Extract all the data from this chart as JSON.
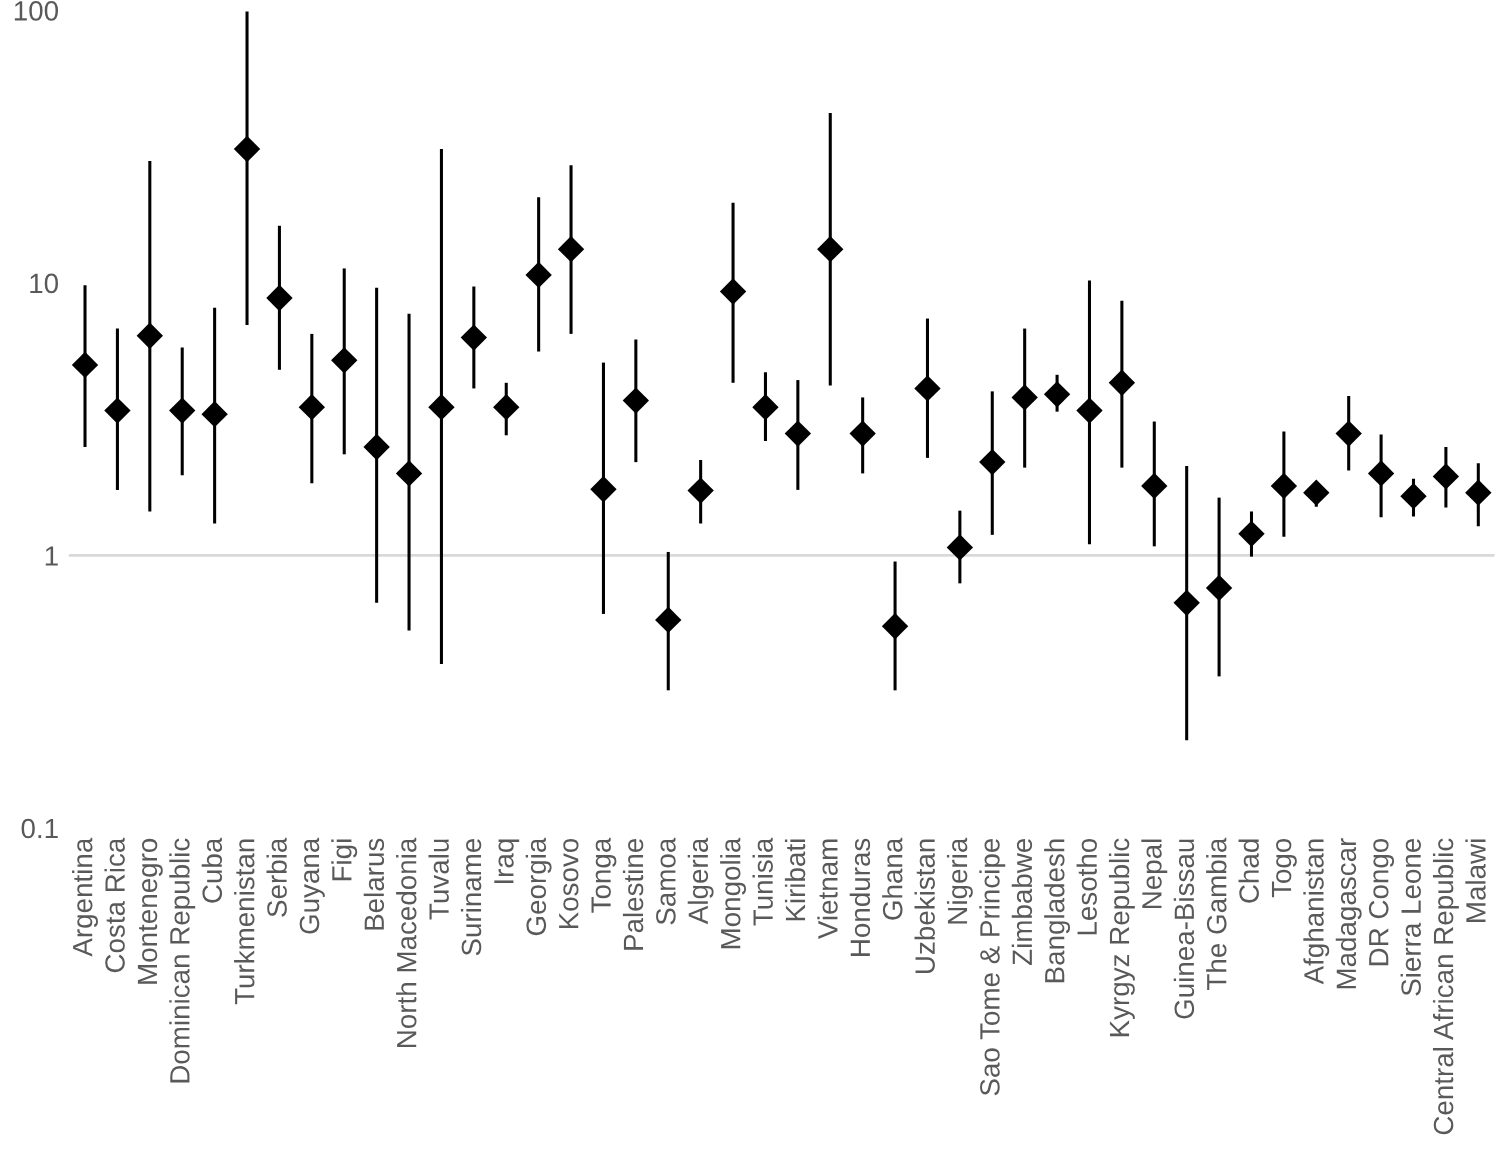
{
  "chart_data": {
    "type": "scatter",
    "log": "y",
    "marker": "diamond",
    "grid": false,
    "legend": false,
    "categories": [
      "Argentina",
      "Costa Rica",
      "Montenegro",
      "Dominican Republic",
      "Cuba",
      "Turkmenistan",
      "Serbia",
      "Guyana",
      "Figi",
      "Belarus",
      "North Macedonia",
      "Tuvalu",
      "Suriname",
      "Iraq",
      "Georgia",
      "Kosovo",
      "Tonga",
      "Palestine",
      "Samoa",
      "Algeria",
      "Mongolia",
      "Tunisia",
      "Kiribati",
      "Vietnam",
      "Honduras",
      "Ghana",
      "Uzbekistan",
      "Nigeria",
      "Sao Tome & Principe",
      "Zimbabwe",
      "Bangladesh",
      "Lesotho",
      "Kyrgyz Republic",
      "Nepal",
      "Guinea-Bissau",
      "The Gambia",
      "Chad",
      "Togo",
      "Afghanistan",
      "Madagascar",
      "DR Congo",
      "Sierra Leone",
      "Central African Republic",
      "Malawi"
    ],
    "series": [
      {
        "color": "#000000",
        "values": [
          5.0,
          3.4,
          6.4,
          3.4,
          3.3,
          31,
          8.8,
          3.5,
          5.2,
          2.5,
          2.0,
          3.5,
          6.3,
          3.5,
          10.7,
          13.3,
          1.75,
          3.7,
          0.58,
          1.73,
          9.3,
          3.5,
          2.8,
          13.3,
          2.8,
          0.55,
          4.1,
          1.07,
          2.2,
          3.8,
          3.9,
          3.4,
          4.3,
          1.8,
          0.67,
          0.76,
          1.2,
          1.8,
          1.7,
          2.8,
          2.0,
          1.65,
          1.95,
          1.7
        ],
        "errors": [
          [
            2.5,
            9.8
          ],
          [
            1.74,
            6.8
          ],
          [
            1.45,
            28
          ],
          [
            1.97,
            5.8
          ],
          [
            1.31,
            8.1
          ],
          [
            7.0,
            99
          ],
          [
            4.8,
            16.2
          ],
          [
            1.84,
            6.5
          ],
          [
            2.35,
            11.3
          ],
          [
            0.67,
            9.6
          ],
          [
            0.53,
            7.7
          ],
          [
            0.4,
            31
          ],
          [
            4.1,
            9.7
          ],
          [
            2.76,
            4.3
          ],
          [
            5.6,
            20.6
          ],
          [
            6.5,
            27
          ],
          [
            0.61,
            5.1
          ],
          [
            2.2,
            6.2
          ],
          [
            0.32,
            1.03
          ],
          [
            1.31,
            2.24
          ],
          [
            4.3,
            19.7
          ],
          [
            2.63,
            4.7
          ],
          [
            1.74,
            4.4
          ],
          [
            4.2,
            42
          ],
          [
            2.0,
            3.8
          ],
          [
            0.32,
            0.95
          ],
          [
            2.28,
            7.4
          ],
          [
            0.79,
            1.46
          ],
          [
            1.19,
            4.0
          ],
          [
            2.1,
            6.8
          ],
          [
            3.37,
            4.6
          ],
          [
            1.1,
            10.2
          ],
          [
            2.1,
            8.6
          ],
          [
            1.08,
            3.1
          ],
          [
            0.21,
            2.13
          ],
          [
            0.36,
            1.63
          ],
          [
            0.99,
            1.45
          ],
          [
            1.17,
            2.85
          ],
          [
            1.51,
            1.86
          ],
          [
            2.05,
            3.85
          ],
          [
            1.38,
            2.78
          ],
          [
            1.39,
            1.91
          ],
          [
            1.5,
            2.5
          ],
          [
            1.28,
            2.18
          ]
        ]
      }
    ],
    "ylim": [
      0.1,
      100
    ],
    "yticks": [
      0.1,
      1,
      10,
      100
    ],
    "ref_lines": [
      {
        "axis": "y",
        "value": 1,
        "color": "#d9d9d9"
      }
    ]
  }
}
